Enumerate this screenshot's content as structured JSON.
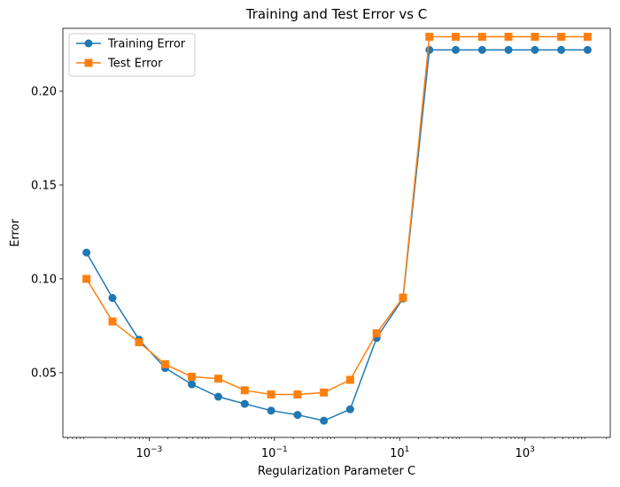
{
  "chart_data": {
    "type": "line",
    "title": "Training and Test Error vs C",
    "xlabel": "Regularization Parameter C",
    "ylabel": "Error",
    "xscale": "log",
    "xlim": [
      4.2e-05,
      23000
    ],
    "ylim": [
      0.0155,
      0.2335
    ],
    "xticks": [
      {
        "value": 0.001,
        "base": "10",
        "exp": "−3"
      },
      {
        "value": 0.1,
        "base": "10",
        "exp": "−1"
      },
      {
        "value": 10,
        "base": "10",
        "exp": "1"
      },
      {
        "value": 1000,
        "base": "10",
        "exp": "3"
      }
    ],
    "yticks": [
      {
        "value": 0.05,
        "label": "0.05"
      },
      {
        "value": 0.1,
        "label": "0.10"
      },
      {
        "value": 0.15,
        "label": "0.15"
      },
      {
        "value": 0.2,
        "label": "0.20"
      }
    ],
    "grid": false,
    "legend_position": "top-left",
    "x": [
      0.0001,
      0.00026,
      0.00069,
      0.0018,
      0.0048,
      0.0127,
      0.0336,
      0.0886,
      0.234,
      0.616,
      1.62,
      4.28,
      11.3,
      29.8,
      78.5,
      207,
      546,
      1440,
      3790,
      10000
    ],
    "series": [
      {
        "name": "Training Error",
        "color": "#1f77b4",
        "marker": "circle",
        "values": [
          0.114,
          0.0898,
          0.0676,
          0.0525,
          0.0438,
          0.0372,
          0.0334,
          0.0298,
          0.0275,
          0.0244,
          0.0305,
          0.0685,
          0.0895,
          0.222,
          0.222,
          0.222,
          0.222,
          0.222,
          0.222,
          0.222
        ]
      },
      {
        "name": "Test Error",
        "color": "#ff7f0e",
        "marker": "square",
        "values": [
          0.1,
          0.0773,
          0.0662,
          0.0545,
          0.0478,
          0.0468,
          0.0406,
          0.0384,
          0.0384,
          0.0394,
          0.0462,
          0.071,
          0.09,
          0.229,
          0.229,
          0.229,
          0.229,
          0.229,
          0.229,
          0.229
        ]
      }
    ]
  }
}
